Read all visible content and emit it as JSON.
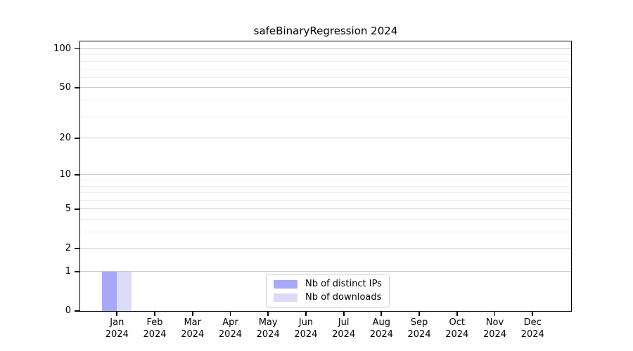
{
  "figure": {
    "background": "#ffffff"
  },
  "chart_data": {
    "type": "bar",
    "title": "safeBinaryRegression 2024",
    "categories": [
      "Jan",
      "Feb",
      "Mar",
      "Apr",
      "May",
      "Jun",
      "Jul",
      "Aug",
      "Sep",
      "Oct",
      "Nov",
      "Dec"
    ],
    "x_tick_year": "2024",
    "series": [
      {
        "name": "Nb of distinct IPs",
        "color": "#a8a8f8",
        "values": [
          1,
          0,
          0,
          0,
          0,
          0,
          0,
          0,
          0,
          0,
          0,
          0
        ]
      },
      {
        "name": "Nb of downloads",
        "color": "#dcdcf8",
        "values": [
          1,
          0,
          0,
          0,
          0,
          0,
          0,
          0,
          0,
          0,
          0,
          0
        ]
      }
    ],
    "y_axis": {
      "scale": "log1p",
      "ticks": [
        0,
        1,
        2,
        5,
        10,
        20,
        50,
        100
      ],
      "minor_gridlines": [
        3,
        4,
        6,
        7,
        8,
        9,
        30,
        40,
        60,
        70,
        80,
        90
      ],
      "max": 114
    },
    "grid": true,
    "legend_position": "lower center",
    "colors": {
      "major_grid": "#c9c9c9",
      "minor_grid": "#ededed",
      "spine": "#000000"
    }
  }
}
